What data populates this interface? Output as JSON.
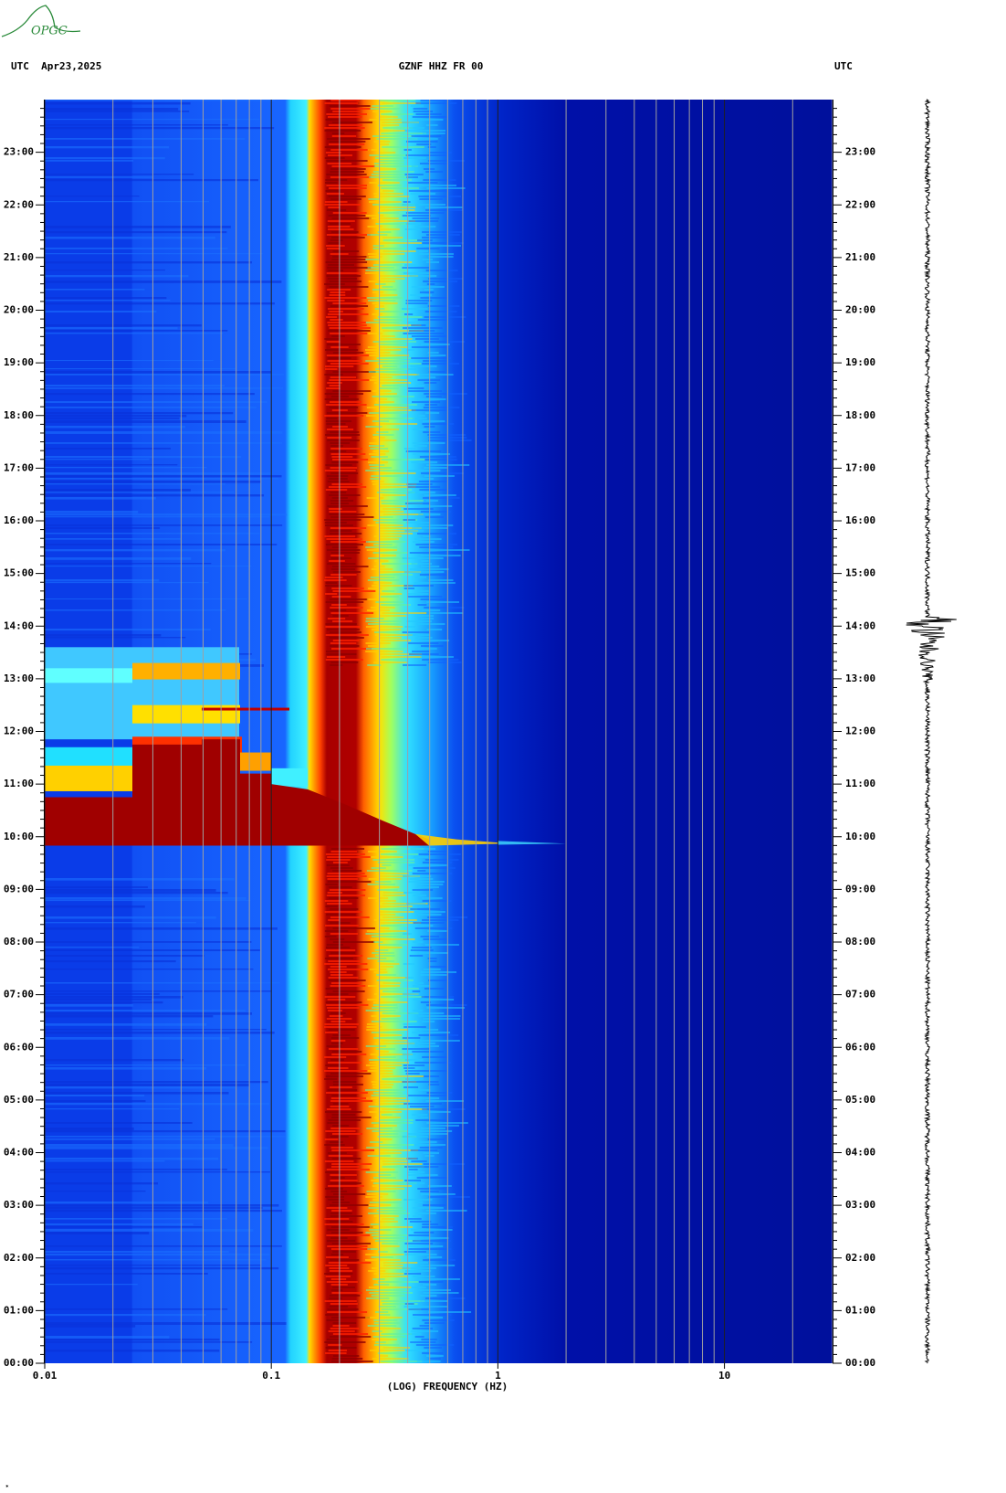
{
  "header": {
    "logo": "OPGC",
    "left": "UTC  Apr23,2025",
    "center": "GZNF HHZ FR 00",
    "right": "UTC"
  },
  "chart_data": {
    "type": "spectrogram",
    "x_label": "(LOG) FREQUENCY (HZ)",
    "xscale": "log",
    "xlim": [
      0.01,
      30
    ],
    "xticks": [
      0.01,
      0.1,
      1,
      10
    ],
    "ylim": [
      0,
      24
    ],
    "yticks": [
      {
        "value": 0,
        "label": "00:00"
      },
      {
        "value": 1,
        "label": "01:00"
      },
      {
        "value": 2,
        "label": "02:00"
      },
      {
        "value": 3,
        "label": "03:00"
      },
      {
        "value": 4,
        "label": "04:00"
      },
      {
        "value": 5,
        "label": "05:00"
      },
      {
        "value": 6,
        "label": "06:00"
      },
      {
        "value": 7,
        "label": "07:00"
      },
      {
        "value": 8,
        "label": "08:00"
      },
      {
        "value": 9,
        "label": "09:00"
      },
      {
        "value": 10,
        "label": "10:00"
      },
      {
        "value": 11,
        "label": "11:00"
      },
      {
        "value": 12,
        "label": "12:00"
      },
      {
        "value": 13,
        "label": "13:00"
      },
      {
        "value": 14,
        "label": "14:00"
      },
      {
        "value": 15,
        "label": "15:00"
      },
      {
        "value": 16,
        "label": "16:00"
      },
      {
        "value": 17,
        "label": "17:00"
      },
      {
        "value": 18,
        "label": "18:00"
      },
      {
        "value": 19,
        "label": "19:00"
      },
      {
        "value": 20,
        "label": "20:00"
      },
      {
        "value": 21,
        "label": "21:00"
      },
      {
        "value": 22,
        "label": "22:00"
      },
      {
        "value": 23,
        "label": "23:00"
      }
    ]
  }
}
